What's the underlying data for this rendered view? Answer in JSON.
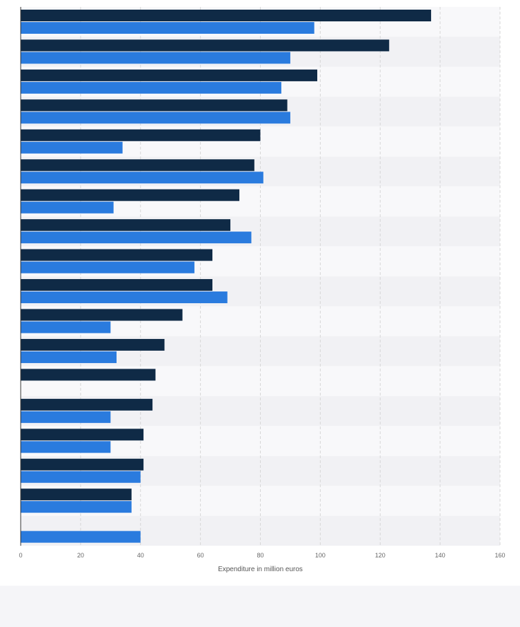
{
  "chart_data": {
    "type": "bar",
    "orientation": "horizontal",
    "categories": [
      "",
      "",
      "",
      "",
      "",
      "",
      "",
      "",
      "",
      "",
      "",
      "",
      "",
      "",
      "",
      "",
      "",
      ""
    ],
    "series": [
      {
        "color": "#0f2a46",
        "values": [
          137,
          123,
          99,
          89,
          80,
          78,
          73,
          70,
          64,
          64,
          54,
          48,
          45,
          44,
          41,
          41,
          37,
          null
        ]
      },
      {
        "color": "#2a7bde",
        "values": [
          98,
          90,
          87,
          90,
          34,
          81,
          31,
          77,
          58,
          69,
          30,
          32,
          null,
          30,
          30,
          40,
          37,
          40
        ]
      }
    ],
    "xlabel": "Expenditure in million euros",
    "ylabel": "",
    "xlim": [
      0,
      160
    ],
    "xticks": [
      0,
      20,
      40,
      60,
      80,
      100,
      120,
      140,
      160
    ],
    "grid": true,
    "legend": "none"
  }
}
